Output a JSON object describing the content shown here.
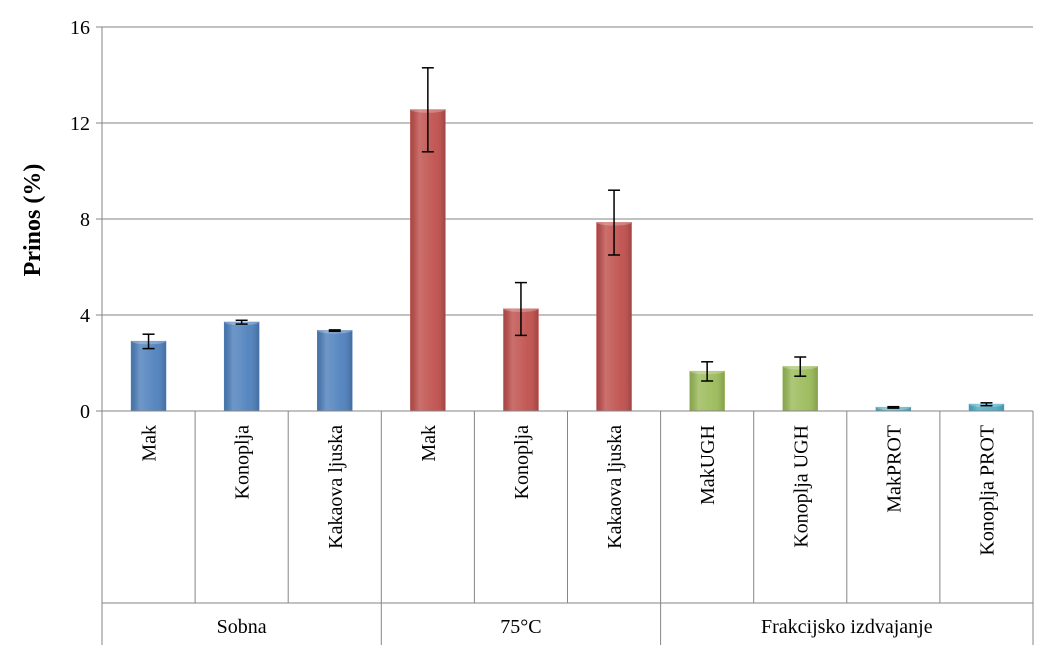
{
  "chart_data": {
    "type": "bar",
    "title": "",
    "xlabel": "",
    "ylabel": "Prinos (%)",
    "ylim": [
      0,
      16
    ],
    "yticks": [
      0,
      4,
      8,
      12,
      16
    ],
    "grid": true,
    "legend": "none",
    "groups": [
      {
        "label": "Sobna",
        "color": "#4F81BD",
        "bars": [
          {
            "label": "Mak",
            "value": 2.9,
            "error": 0.3
          },
          {
            "label": "Konoplja",
            "value": 3.7,
            "error": 0.08
          },
          {
            "label": "Kakaova ljuska",
            "value": 3.35,
            "error": 0.03
          }
        ]
      },
      {
        "label": "75°C",
        "color": "#C0504D",
        "bars": [
          {
            "label": "Mak",
            "value": 12.55,
            "error": 1.75
          },
          {
            "label": "Konoplja",
            "value": 4.25,
            "error": 1.1
          },
          {
            "label": "Kakaova ljuska",
            "value": 7.85,
            "error": 1.35
          }
        ]
      },
      {
        "label": "Frakcijsko izdvajanje",
        "color": "#9BBB59",
        "bars": [
          {
            "label": "MakUGH",
            "value": 1.65,
            "error": 0.4,
            "color": "#9BBB59"
          },
          {
            "label": "Konoplja UGH",
            "value": 1.85,
            "error": 0.4,
            "color": "#9BBB59"
          },
          {
            "label": "MakPROT",
            "value": 0.15,
            "error": 0.03,
            "color": "#4BACC6"
          },
          {
            "label": "Konoplja PROT",
            "value": 0.28,
            "error": 0.06,
            "color": "#4BACC6"
          }
        ]
      }
    ]
  }
}
